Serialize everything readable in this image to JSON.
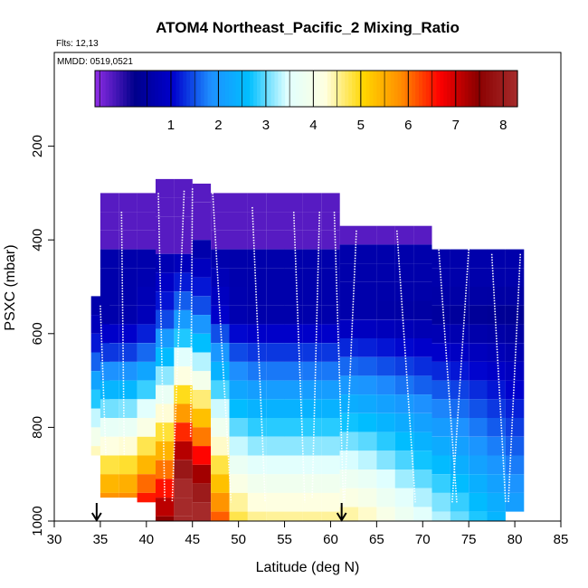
{
  "chart_data": {
    "type": "heatmap",
    "title": "ATOM4 Northeast_Pacific_2 Mixing_Ratio",
    "flights_label": "Flts: 12,13",
    "mmdd_label": "MMDD: 0519,0521",
    "xlabel": "Latitude (deg N)",
    "ylabel": "PSXC (mbar)",
    "xlim": [
      30,
      85
    ],
    "ylim": [
      1000,
      0
    ],
    "x_ticks": [
      30,
      35,
      40,
      45,
      50,
      55,
      60,
      65,
      70,
      75,
      80,
      85
    ],
    "y_ticks": [
      200,
      400,
      600,
      800,
      1000
    ],
    "colorbar": {
      "range": [
        -0.6,
        8.3
      ],
      "ticks": [
        1,
        2,
        3,
        4,
        5,
        6,
        7,
        8
      ],
      "colors": [
        "#8a2be2",
        "#00008b",
        "#0000cd",
        "#1e90ff",
        "#00bfff",
        "#e0ffff",
        "#ffffe0",
        "#ffd700",
        "#ff8c00",
        "#ff0000",
        "#8b0000",
        "#a52a2a"
      ]
    },
    "latitude_markers": [
      34.6,
      61.2
    ],
    "columns": [
      {
        "lat": 35,
        "pmin": 520,
        "pmax": 860
      },
      {
        "lat": 36,
        "pmin": 300,
        "pmax": 950
      },
      {
        "lat": 38,
        "pmin": 300,
        "pmax": 950
      },
      {
        "lat": 40,
        "pmin": 300,
        "pmax": 960
      },
      {
        "lat": 42,
        "pmin": 270,
        "pmax": 1000
      },
      {
        "lat": 44,
        "pmin": 270,
        "pmax": 1000
      },
      {
        "lat": 46,
        "pmin": 280,
        "pmax": 1000
      },
      {
        "lat": 48,
        "pmin": 300,
        "pmax": 1000
      },
      {
        "lat": 50,
        "pmin": 300,
        "pmax": 1000
      },
      {
        "lat": 52,
        "pmin": 300,
        "pmax": 1000
      },
      {
        "lat": 54,
        "pmin": 300,
        "pmax": 1000
      },
      {
        "lat": 56,
        "pmin": 300,
        "pmax": 1000
      },
      {
        "lat": 58,
        "pmin": 300,
        "pmax": 1000
      },
      {
        "lat": 60,
        "pmin": 300,
        "pmax": 1000
      },
      {
        "lat": 62,
        "pmin": 370,
        "pmax": 1000
      },
      {
        "lat": 64,
        "pmin": 370,
        "pmax": 1000
      },
      {
        "lat": 66,
        "pmin": 370,
        "pmax": 1000
      },
      {
        "lat": 68,
        "pmin": 370,
        "pmax": 1000
      },
      {
        "lat": 70,
        "pmin": 370,
        "pmax": 1000
      },
      {
        "lat": 72,
        "pmin": 420,
        "pmax": 1000
      },
      {
        "lat": 74,
        "pmin": 420,
        "pmax": 1000
      },
      {
        "lat": 76,
        "pmin": 420,
        "pmax": 1000
      },
      {
        "lat": 78,
        "pmin": 420,
        "pmax": 1000
      },
      {
        "lat": 80,
        "pmin": 420,
        "pmax": 980
      }
    ],
    "profiles": [
      [
        35,
        540
      ],
      [
        35.6,
        860
      ],
      [
        37.3,
        340
      ],
      [
        37.6,
        860
      ],
      [
        41.3,
        300
      ],
      [
        42.0,
        960
      ],
      [
        44.1,
        295
      ],
      [
        42.8,
        960
      ],
      [
        45.0,
        290
      ],
      [
        44.8,
        820
      ],
      [
        47.2,
        300
      ],
      [
        49.2,
        960
      ],
      [
        51.5,
        330
      ],
      [
        52.9,
        960
      ],
      [
        56.0,
        340
      ],
      [
        57.2,
        960
      ],
      [
        58.8,
        340
      ],
      [
        58.0,
        950
      ],
      [
        60.4,
        340
      ],
      [
        61.4,
        960
      ],
      [
        62.8,
        380
      ],
      [
        61.5,
        960
      ],
      [
        67.2,
        380
      ],
      [
        69.2,
        960
      ],
      [
        71.6,
        380
      ],
      [
        73.7,
        960
      ],
      [
        75.0,
        420
      ],
      [
        73.2,
        960
      ],
      [
        77.5,
        430
      ],
      [
        79.0,
        960
      ],
      [
        80.6,
        430
      ],
      [
        79.3,
        960
      ]
    ]
  }
}
